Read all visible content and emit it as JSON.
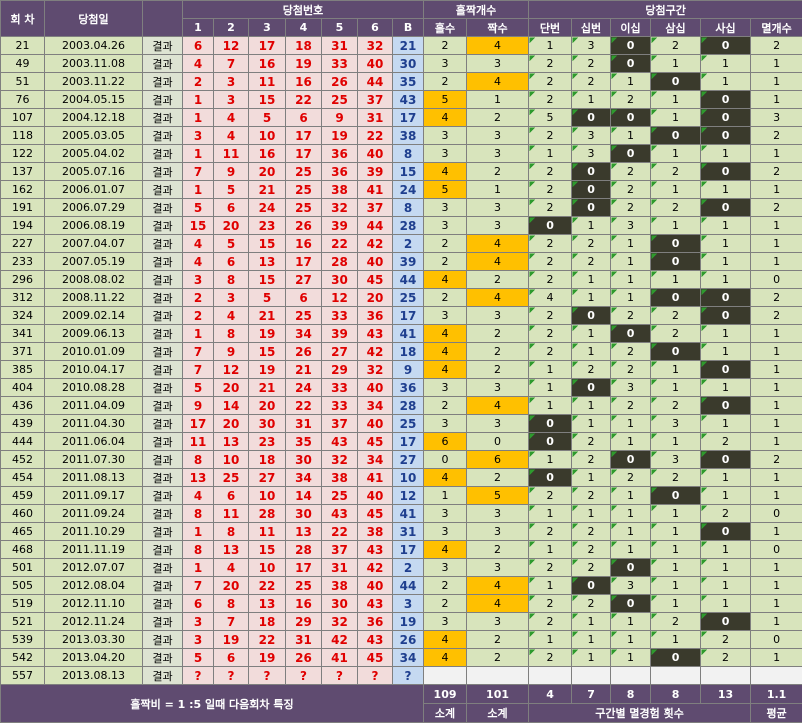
{
  "header": {
    "round": "회 차",
    "date": "당첨일",
    "numbers_group": "당첨번호",
    "number_cols": [
      "1",
      "2",
      "3",
      "4",
      "5",
      "6",
      "B"
    ],
    "oddeven_group": "홀짝개수",
    "oddeven_cols": [
      "홀수",
      "짝수"
    ],
    "zone_group": "당첨구간",
    "zone_cols": [
      "단번",
      "십번",
      "이십",
      "삼십",
      "사십",
      "멸개수"
    ]
  },
  "rows": [
    {
      "round": 21,
      "date": "2003.04.26",
      "result": "결과",
      "numbers": [
        6,
        12,
        17,
        18,
        31,
        32
      ],
      "bonus": 21,
      "odd": 2,
      "even": 4,
      "zones": [
        1,
        3,
        0,
        2,
        0
      ],
      "missing": 2
    },
    {
      "round": 49,
      "date": "2003.11.08",
      "result": "결과",
      "numbers": [
        4,
        7,
        16,
        19,
        33,
        40
      ],
      "bonus": 30,
      "odd": 3,
      "even": 3,
      "zones": [
        2,
        2,
        0,
        1,
        1
      ],
      "missing": 1
    },
    {
      "round": 51,
      "date": "2003.11.22",
      "result": "결과",
      "numbers": [
        2,
        3,
        11,
        16,
        26,
        44
      ],
      "bonus": 35,
      "odd": 2,
      "even": 4,
      "zones": [
        2,
        2,
        1,
        0,
        1
      ],
      "missing": 1
    },
    {
      "round": 76,
      "date": "2004.05.15",
      "result": "결과",
      "numbers": [
        1,
        3,
        15,
        22,
        25,
        37
      ],
      "bonus": 43,
      "odd": 5,
      "even": 1,
      "zones": [
        2,
        1,
        2,
        1,
        0
      ],
      "missing": 1
    },
    {
      "round": 107,
      "date": "2004.12.18",
      "result": "결과",
      "numbers": [
        1,
        4,
        5,
        6,
        9,
        31
      ],
      "bonus": 17,
      "odd": 4,
      "even": 2,
      "zones": [
        5,
        0,
        0,
        1,
        0
      ],
      "missing": 3
    },
    {
      "round": 118,
      "date": "2005.03.05",
      "result": "결과",
      "numbers": [
        3,
        4,
        10,
        17,
        19,
        22
      ],
      "bonus": 38,
      "odd": 3,
      "even": 3,
      "zones": [
        2,
        3,
        1,
        0,
        0
      ],
      "missing": 2
    },
    {
      "round": 122,
      "date": "2005.04.02",
      "result": "결과",
      "numbers": [
        1,
        11,
        16,
        17,
        36,
        40
      ],
      "bonus": 8,
      "odd": 3,
      "even": 3,
      "zones": [
        1,
        3,
        0,
        1,
        1
      ],
      "missing": 1
    },
    {
      "round": 137,
      "date": "2005.07.16",
      "result": "결과",
      "numbers": [
        7,
        9,
        20,
        25,
        36,
        39
      ],
      "bonus": 15,
      "odd": 4,
      "even": 2,
      "zones": [
        2,
        0,
        2,
        2,
        0
      ],
      "missing": 2
    },
    {
      "round": 162,
      "date": "2006.01.07",
      "result": "결과",
      "numbers": [
        1,
        5,
        21,
        25,
        38,
        41
      ],
      "bonus": 24,
      "odd": 5,
      "even": 1,
      "zones": [
        2,
        0,
        2,
        1,
        1
      ],
      "missing": 1
    },
    {
      "round": 191,
      "date": "2006.07.29",
      "result": "결과",
      "numbers": [
        5,
        6,
        24,
        25,
        32,
        37
      ],
      "bonus": 8,
      "odd": 3,
      "even": 3,
      "zones": [
        2,
        0,
        2,
        2,
        0
      ],
      "missing": 2
    },
    {
      "round": 194,
      "date": "2006.08.19",
      "result": "결과",
      "numbers": [
        15,
        20,
        23,
        26,
        39,
        44
      ],
      "bonus": 28,
      "odd": 3,
      "even": 3,
      "zones": [
        0,
        1,
        3,
        1,
        1
      ],
      "missing": 1
    },
    {
      "round": 227,
      "date": "2007.04.07",
      "result": "결과",
      "numbers": [
        4,
        5,
        15,
        16,
        22,
        42
      ],
      "bonus": 2,
      "odd": 2,
      "even": 4,
      "zones": [
        2,
        2,
        1,
        0,
        1
      ],
      "missing": 1
    },
    {
      "round": 233,
      "date": "2007.05.19",
      "result": "결과",
      "numbers": [
        4,
        6,
        13,
        17,
        28,
        40
      ],
      "bonus": 39,
      "odd": 2,
      "even": 4,
      "zones": [
        2,
        2,
        1,
        0,
        1
      ],
      "missing": 1
    },
    {
      "round": 296,
      "date": "2008.08.02",
      "result": "결과",
      "numbers": [
        3,
        8,
        15,
        27,
        30,
        45
      ],
      "bonus": 44,
      "odd": 4,
      "even": 2,
      "zones": [
        2,
        1,
        1,
        1,
        1
      ],
      "missing": 0
    },
    {
      "round": 312,
      "date": "2008.11.22",
      "result": "결과",
      "numbers": [
        2,
        3,
        5,
        6,
        12,
        20
      ],
      "bonus": 25,
      "odd": 2,
      "even": 4,
      "zones": [
        4,
        1,
        1,
        0,
        0
      ],
      "missing": 2
    },
    {
      "round": 324,
      "date": "2009.02.14",
      "result": "결과",
      "numbers": [
        2,
        4,
        21,
        25,
        33,
        36
      ],
      "bonus": 17,
      "odd": 3,
      "even": 3,
      "zones": [
        2,
        0,
        2,
        2,
        0
      ],
      "missing": 2
    },
    {
      "round": 341,
      "date": "2009.06.13",
      "result": "결과",
      "numbers": [
        1,
        8,
        19,
        34,
        39,
        43
      ],
      "bonus": 41,
      "odd": 4,
      "even": 2,
      "zones": [
        2,
        1,
        0,
        2,
        1
      ],
      "missing": 1
    },
    {
      "round": 371,
      "date": "2010.01.09",
      "result": "결과",
      "numbers": [
        7,
        9,
        15,
        26,
        27,
        42
      ],
      "bonus": 18,
      "odd": 4,
      "even": 2,
      "zones": [
        2,
        1,
        2,
        0,
        1
      ],
      "missing": 1
    },
    {
      "round": 385,
      "date": "2010.04.17",
      "result": "결과",
      "numbers": [
        7,
        12,
        19,
        21,
        29,
        32
      ],
      "bonus": 9,
      "odd": 4,
      "even": 2,
      "zones": [
        1,
        2,
        2,
        1,
        0
      ],
      "missing": 1
    },
    {
      "round": 404,
      "date": "2010.08.28",
      "result": "결과",
      "numbers": [
        5,
        20,
        21,
        24,
        33,
        40
      ],
      "bonus": 36,
      "odd": 3,
      "even": 3,
      "zones": [
        1,
        0,
        3,
        1,
        1
      ],
      "missing": 1
    },
    {
      "round": 436,
      "date": "2011.04.09",
      "result": "결과",
      "numbers": [
        9,
        14,
        20,
        22,
        33,
        34
      ],
      "bonus": 28,
      "odd": 2,
      "even": 4,
      "zones": [
        1,
        1,
        2,
        2,
        0
      ],
      "missing": 1
    },
    {
      "round": 439,
      "date": "2011.04.30",
      "result": "결과",
      "numbers": [
        17,
        20,
        30,
        31,
        37,
        40
      ],
      "bonus": 25,
      "odd": 3,
      "even": 3,
      "zones": [
        0,
        1,
        1,
        3,
        1
      ],
      "missing": 1
    },
    {
      "round": 444,
      "date": "2011.06.04",
      "result": "결과",
      "numbers": [
        11,
        13,
        23,
        35,
        43,
        45
      ],
      "bonus": 17,
      "odd": 6,
      "even": 0,
      "zones": [
        0,
        2,
        1,
        1,
        2
      ],
      "missing": 1
    },
    {
      "round": 452,
      "date": "2011.07.30",
      "result": "결과",
      "numbers": [
        8,
        10,
        18,
        30,
        32,
        34
      ],
      "bonus": 27,
      "odd": 0,
      "even": 6,
      "zones": [
        1,
        2,
        0,
        3,
        0
      ],
      "missing": 2
    },
    {
      "round": 454,
      "date": "2011.08.13",
      "result": "결과",
      "numbers": [
        13,
        25,
        27,
        34,
        38,
        41
      ],
      "bonus": 10,
      "odd": 4,
      "even": 2,
      "zones": [
        0,
        1,
        2,
        2,
        1
      ],
      "missing": 1
    },
    {
      "round": 459,
      "date": "2011.09.17",
      "result": "결과",
      "numbers": [
        4,
        6,
        10,
        14,
        25,
        40
      ],
      "bonus": 12,
      "odd": 1,
      "even": 5,
      "zones": [
        2,
        2,
        1,
        0,
        1
      ],
      "missing": 1
    },
    {
      "round": 460,
      "date": "2011.09.24",
      "result": "결과",
      "numbers": [
        8,
        11,
        28,
        30,
        43,
        45
      ],
      "bonus": 41,
      "odd": 3,
      "even": 3,
      "zones": [
        1,
        1,
        1,
        1,
        2
      ],
      "missing": 0
    },
    {
      "round": 465,
      "date": "2011.10.29",
      "result": "결과",
      "numbers": [
        1,
        8,
        11,
        13,
        22,
        38
      ],
      "bonus": 31,
      "odd": 3,
      "even": 3,
      "zones": [
        2,
        2,
        1,
        1,
        0
      ],
      "missing": 1
    },
    {
      "round": 468,
      "date": "2011.11.19",
      "result": "결과",
      "numbers": [
        8,
        13,
        15,
        28,
        37,
        43
      ],
      "bonus": 17,
      "odd": 4,
      "even": 2,
      "zones": [
        1,
        2,
        1,
        1,
        1
      ],
      "missing": 0
    },
    {
      "round": 501,
      "date": "2012.07.07",
      "result": "결과",
      "numbers": [
        1,
        4,
        10,
        17,
        31,
        42
      ],
      "bonus": 2,
      "odd": 3,
      "even": 3,
      "zones": [
        2,
        2,
        0,
        1,
        1
      ],
      "missing": 1
    },
    {
      "round": 505,
      "date": "2012.08.04",
      "result": "결과",
      "numbers": [
        7,
        20,
        22,
        25,
        38,
        40
      ],
      "bonus": 44,
      "odd": 2,
      "even": 4,
      "zones": [
        1,
        0,
        3,
        1,
        1
      ],
      "missing": 1
    },
    {
      "round": 519,
      "date": "2012.11.10",
      "result": "결과",
      "numbers": [
        6,
        8,
        13,
        16,
        30,
        43
      ],
      "bonus": 3,
      "odd": 2,
      "even": 4,
      "zones": [
        2,
        2,
        0,
        1,
        1
      ],
      "missing": 1
    },
    {
      "round": 521,
      "date": "2012.11.24",
      "result": "결과",
      "numbers": [
        3,
        7,
        18,
        29,
        32,
        36
      ],
      "bonus": 19,
      "odd": 3,
      "even": 3,
      "zones": [
        2,
        1,
        1,
        2,
        0
      ],
      "missing": 1
    },
    {
      "round": 539,
      "date": "2013.03.30",
      "result": "결과",
      "numbers": [
        3,
        19,
        22,
        31,
        42,
        43
      ],
      "bonus": 26,
      "odd": 4,
      "even": 2,
      "zones": [
        1,
        1,
        1,
        1,
        2
      ],
      "missing": 0
    },
    {
      "round": 542,
      "date": "2013.04.20",
      "result": "결과",
      "numbers": [
        5,
        6,
        19,
        26,
        41,
        45
      ],
      "bonus": 34,
      "odd": 4,
      "even": 2,
      "zones": [
        2,
        1,
        1,
        0,
        2
      ],
      "missing": 1
    },
    {
      "round": 557,
      "date": "2013.08.13",
      "result": "결과",
      "numbers": [
        "?",
        "?",
        "?",
        "?",
        "?",
        "?"
      ],
      "bonus": "?"
    }
  ],
  "footer": {
    "note": "홀짝비 = 1 :5 일때 다음회차 특징",
    "odd_total": 109,
    "even_total": 101,
    "zone_counts": [
      4,
      7,
      8,
      8,
      13
    ],
    "missing_avg": 1.1,
    "subtotal_odd": "소계",
    "subtotal_even": "소계",
    "zone_label": "구간별 멸경험 횟수",
    "avg_label": "평균"
  }
}
